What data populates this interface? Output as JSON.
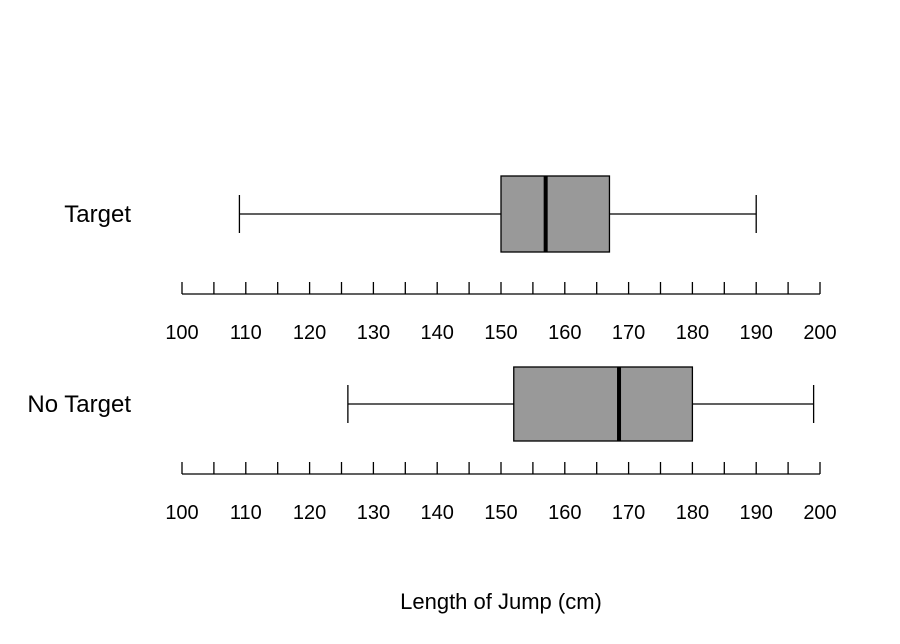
{
  "chart_data": {
    "type": "boxplot",
    "title": "",
    "xlabel": "Length of Jump (cm)",
    "ylabel": "",
    "xlim": [
      100,
      200
    ],
    "tick_labels": [
      "100",
      "110",
      "120",
      "130",
      "140",
      "150",
      "160",
      "170",
      "180",
      "190",
      "200"
    ],
    "tick_values": [
      100,
      110,
      120,
      130,
      140,
      150,
      160,
      170,
      180,
      190,
      200
    ],
    "minor_tick_step": 5,
    "grid": false,
    "box_color": "#999999",
    "groups": [
      {
        "name": "Target",
        "min": 109,
        "q1": 150,
        "median": 157,
        "q3": 167,
        "max": 190
      },
      {
        "name": "No Target",
        "min": 126,
        "q1": 152,
        "median": 168.5,
        "q3": 180,
        "max": 199
      }
    ]
  }
}
